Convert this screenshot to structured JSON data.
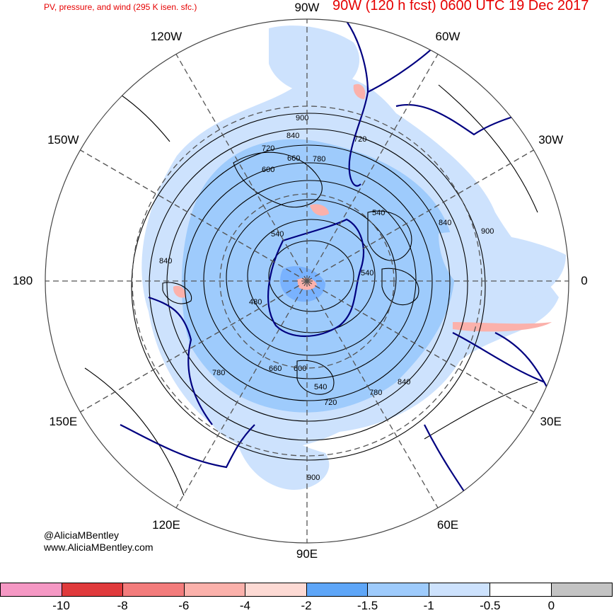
{
  "header": {
    "left_title": "PV, pressure, and wind (295 K isen. sfc.)",
    "right_title": "90W   (120 h fcst) 0600 UTC 19 Dec 2017"
  },
  "map": {
    "projection": "north-polar-stereographic",
    "longitude_labels": [
      {
        "text": "90W",
        "lon": -90
      },
      {
        "text": "60W",
        "lon": -60
      },
      {
        "text": "30W",
        "lon": -30
      },
      {
        "text": "0",
        "lon": 0
      },
      {
        "text": "30E",
        "lon": 30
      },
      {
        "text": "60E",
        "lon": 60
      },
      {
        "text": "90E",
        "lon": 90
      },
      {
        "text": "120E",
        "lon": 120
      },
      {
        "text": "150E",
        "lon": 150
      },
      {
        "text": "180",
        "lon": 180
      },
      {
        "text": "150W",
        "lon": -150
      },
      {
        "text": "120W",
        "lon": -120
      }
    ],
    "pressure_contour_labels": [
      "900",
      "840",
      "720",
      "660",
      "780",
      "600",
      "540",
      "840",
      "900",
      "540",
      "540",
      "840",
      "480",
      "780",
      "660",
      "600",
      "540",
      "720",
      "780",
      "840",
      "900",
      "720"
    ],
    "colors": {
      "coastline": "#000080",
      "contour": "#000000",
      "grid": "#555555",
      "pv_shade_light": "#cce0ff",
      "pv_shade_mid": "#99c2ff",
      "pv_shade_dark": "#6aa6ff",
      "pv_positive": "#ffb3b3"
    }
  },
  "colorbar": {
    "colors": [
      "#f598c4",
      "#e03a3c",
      "#f37c7c",
      "#fbb1ab",
      "#fddad4",
      "#5ea6f8",
      "#9ecbfc",
      "#cde2fd",
      "#ffffff",
      "#c3c3c3"
    ],
    "tick_labels": [
      "-10",
      "-8",
      "-6",
      "-4",
      "-2",
      "-1.5",
      "-1",
      "-0.5",
      "0"
    ]
  },
  "credits": {
    "handle": "@AliciaMBentley",
    "website": "www.AliciaMBentley.com"
  }
}
